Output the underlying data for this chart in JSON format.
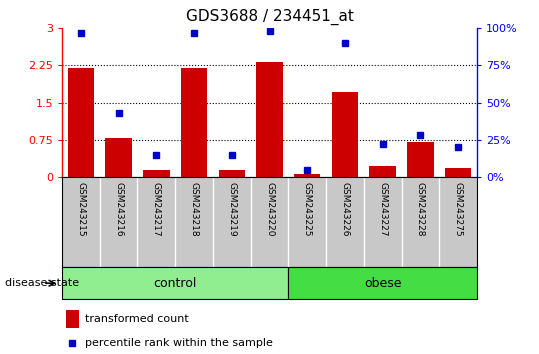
{
  "title": "GDS3688 / 234451_at",
  "samples": [
    "GSM243215",
    "GSM243216",
    "GSM243217",
    "GSM243218",
    "GSM243219",
    "GSM243220",
    "GSM243225",
    "GSM243226",
    "GSM243227",
    "GSM243228",
    "GSM243275"
  ],
  "transformed_count": [
    2.2,
    0.78,
    0.15,
    2.2,
    0.15,
    2.33,
    0.07,
    1.72,
    0.22,
    0.7,
    0.18
  ],
  "percentile_rank": [
    97,
    43,
    15,
    97,
    15,
    98,
    5,
    90,
    22,
    28,
    20
  ],
  "groups": [
    {
      "name": "control",
      "indices": [
        0,
        1,
        2,
        3,
        4,
        5
      ],
      "color": "#90EE90"
    },
    {
      "name": "obese",
      "indices": [
        6,
        7,
        8,
        9,
        10
      ],
      "color": "#44DD44"
    }
  ],
  "group_label": "disease state",
  "ylim_left": [
    0,
    3
  ],
  "ylim_right": [
    0,
    100
  ],
  "yticks_left": [
    0,
    0.75,
    1.5,
    2.25,
    3
  ],
  "yticks_right": [
    0,
    25,
    50,
    75,
    100
  ],
  "yticklabels_left": [
    "0",
    "0.75",
    "1.5",
    "2.25",
    "3"
  ],
  "yticklabels_right": [
    "0%",
    "25%",
    "50%",
    "75%",
    "100%"
  ],
  "bar_color": "#CC0000",
  "dot_color": "#0000CC",
  "plot_bg_color": "#FFFFFF",
  "xticklabel_bg_color": "#C8C8C8",
  "legend_bar_label": "transformed count",
  "legend_dot_label": "percentile rank within the sample"
}
